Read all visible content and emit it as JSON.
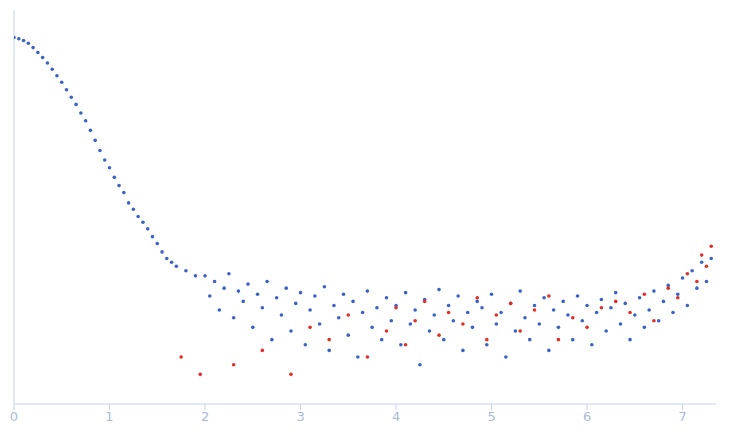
{
  "chart_data": {
    "type": "scatter",
    "log": "y",
    "grid": false,
    "tick_labels": "x",
    "marker": "circle",
    "xlim": [
      0,
      7.35
    ],
    "xticks": [
      0,
      1,
      2,
      3,
      4,
      5,
      6,
      7
    ],
    "ylim": [
      0.0002,
      2
    ],
    "yticks": [
      0.01,
      0.1
    ],
    "series": [
      {
        "color": "#3b63c4",
        "x": [
          0,
          0.05,
          0.1,
          0.15,
          0.2,
          0.25,
          0.3,
          0.35,
          0.4,
          0.45,
          0.5,
          0.55,
          0.6,
          0.65,
          0.7,
          0.75,
          0.8,
          0.85,
          0.9,
          0.95,
          1.0,
          1.05,
          1.1,
          1.15,
          1.2,
          1.25,
          1.3,
          1.35,
          1.4,
          1.45,
          1.5,
          1.55,
          1.6,
          1.65,
          1.7,
          1.8,
          1.9,
          2.0,
          2.05,
          2.1,
          2.15,
          2.2,
          2.25,
          2.3,
          2.35,
          2.4,
          2.45,
          2.5,
          2.55,
          2.6,
          2.65,
          2.7,
          2.75,
          2.8,
          2.85,
          2.9,
          2.95,
          3.0,
          3.05,
          3.1,
          3.15,
          3.2,
          3.25,
          3.3,
          3.35,
          3.4,
          3.45,
          3.5,
          3.55,
          3.6,
          3.65,
          3.7,
          3.75,
          3.8,
          3.85,
          3.9,
          3.95,
          4.0,
          4.05,
          4.1,
          4.15,
          4.2,
          4.25,
          4.3,
          4.35,
          4.4,
          4.45,
          4.5,
          4.55,
          4.6,
          4.65,
          4.7,
          4.75,
          4.8,
          4.85,
          4.9,
          4.95,
          5.0,
          5.05,
          5.1,
          5.15,
          5.2,
          5.25,
          5.3,
          5.35,
          5.4,
          5.45,
          5.5,
          5.55,
          5.6,
          5.65,
          5.7,
          5.75,
          5.8,
          5.85,
          5.9,
          5.95,
          6.0,
          6.05,
          6.1,
          6.15,
          6.2,
          6.25,
          6.3,
          6.35,
          6.4,
          6.45,
          6.5,
          6.55,
          6.6,
          6.65,
          6.7,
          6.75,
          6.8,
          6.85,
          6.9,
          6.95,
          7.0,
          7.05,
          7.1,
          7.15,
          7.2,
          7.25,
          7.3
        ],
        "values": [
          1.05,
          1.02,
          0.98,
          0.92,
          0.83,
          0.74,
          0.66,
          0.58,
          0.5,
          0.43,
          0.37,
          0.31,
          0.26,
          0.22,
          0.18,
          0.15,
          0.12,
          0.095,
          0.075,
          0.06,
          0.05,
          0.04,
          0.033,
          0.028,
          0.022,
          0.019,
          0.016,
          0.014,
          0.012,
          0.01,
          0.0085,
          0.007,
          0.006,
          0.0055,
          0.005,
          0.0045,
          0.004,
          0.004,
          0.0025,
          0.0035,
          0.0018,
          0.003,
          0.0042,
          0.0015,
          0.0028,
          0.0022,
          0.0033,
          0.0012,
          0.0026,
          0.0019,
          0.0035,
          0.0009,
          0.0024,
          0.0016,
          0.003,
          0.0011,
          0.0021,
          0.0027,
          0.0008,
          0.0018,
          0.0025,
          0.0013,
          0.0031,
          0.0007,
          0.002,
          0.0015,
          0.0026,
          0.001,
          0.0022,
          0.0006,
          0.0017,
          0.0028,
          0.0012,
          0.0019,
          0.0009,
          0.0024,
          0.0014,
          0.002,
          0.0008,
          0.0027,
          0.0013,
          0.0018,
          0.0005,
          0.0023,
          0.0011,
          0.0016,
          0.0029,
          0.0009,
          0.002,
          0.0014,
          0.0025,
          0.0007,
          0.0017,
          0.0012,
          0.0022,
          0.0019,
          0.0008,
          0.0026,
          0.0013,
          0.0017,
          0.0006,
          0.0021,
          0.0011,
          0.0028,
          0.0015,
          0.0009,
          0.002,
          0.0013,
          0.0024,
          0.0007,
          0.0018,
          0.0012,
          0.0022,
          0.0016,
          0.0009,
          0.0025,
          0.0014,
          0.002,
          0.0008,
          0.0017,
          0.0023,
          0.0011,
          0.0019,
          0.0027,
          0.0013,
          0.0021,
          0.0009,
          0.0016,
          0.0024,
          0.0012,
          0.0018,
          0.0028,
          0.0014,
          0.0022,
          0.0032,
          0.0017,
          0.0026,
          0.0038,
          0.002,
          0.0045,
          0.003,
          0.0055,
          0.0035,
          0.006
        ]
      },
      {
        "color": "#e0302a",
        "x": [
          1.75,
          1.95,
          2.3,
          2.6,
          2.9,
          3.1,
          3.3,
          3.5,
          3.7,
          3.9,
          4.0,
          4.1,
          4.2,
          4.3,
          4.45,
          4.55,
          4.7,
          4.85,
          4.95,
          5.05,
          5.2,
          5.3,
          5.45,
          5.6,
          5.7,
          5.85,
          6.0,
          6.15,
          6.3,
          6.45,
          6.6,
          6.7,
          6.85,
          6.95,
          7.05,
          7.15,
          7.2,
          7.25,
          7.3
        ],
        "values": [
          0.0006,
          0.0004,
          0.0005,
          0.0007,
          0.0004,
          0.0012,
          0.0009,
          0.0016,
          0.0006,
          0.0011,
          0.0019,
          0.0008,
          0.0014,
          0.0022,
          0.001,
          0.0017,
          0.0013,
          0.0024,
          0.0009,
          0.0016,
          0.0021,
          0.0011,
          0.0018,
          0.0025,
          0.0009,
          0.0015,
          0.0012,
          0.0019,
          0.0022,
          0.0017,
          0.0026,
          0.0014,
          0.003,
          0.0024,
          0.0042,
          0.0035,
          0.0065,
          0.005,
          0.008
        ]
      }
    ]
  }
}
